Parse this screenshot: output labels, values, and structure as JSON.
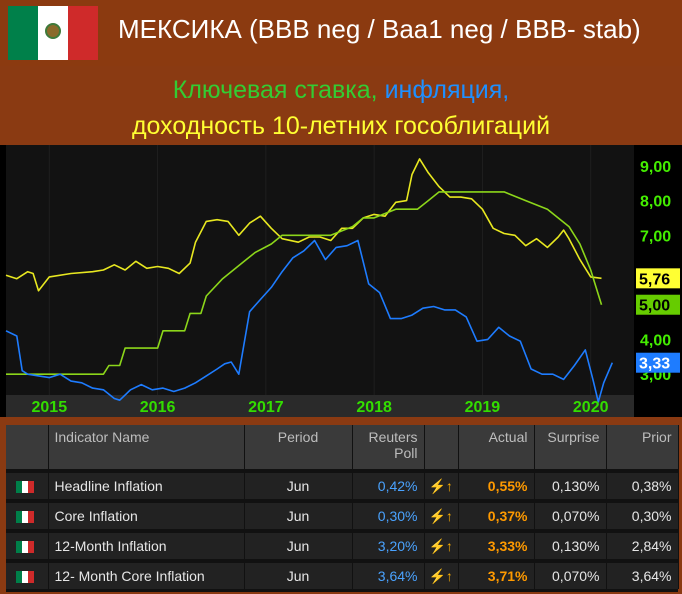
{
  "header": {
    "title": "МЕКСИКА (BBB neg / Baa1 neg / BBB- stab)",
    "subtitle_part1": "Ключевая ставка,",
    "subtitle_part2": "инфляция,",
    "subtitle_line2": "доходность 10-летних гособлигаций",
    "flag_colors": {
      "green": "#00804a",
      "white": "#ffffff",
      "red": "#cf2a2a"
    }
  },
  "chart_data": {
    "type": "line",
    "xlim": [
      2014.6,
      2020.4
    ],
    "ylim": [
      2.4,
      9.6
    ],
    "x_tick_labels": [
      {
        "label": "2015",
        "x": 2015.0
      },
      {
        "label": "2016",
        "x": 2016.0
      },
      {
        "label": "2017",
        "x": 2017.0
      },
      {
        "label": "2018",
        "x": 2018.0
      },
      {
        "label": "2019",
        "x": 2019.0
      },
      {
        "label": "2020",
        "x": 2020.0
      }
    ],
    "y_tick_labels": [
      {
        "label": "3,00",
        "y": 3.0
      },
      {
        "label": "4,00",
        "y": 4.0
      },
      {
        "label": "7,00",
        "y": 7.0
      },
      {
        "label": "8,00",
        "y": 8.0
      },
      {
        "label": "9,00",
        "y": 9.0
      }
    ],
    "last_value_labels": [
      {
        "series": "yield",
        "label": "5,76",
        "y": 5.76,
        "bg": "#ffff33"
      },
      {
        "series": "rate",
        "label": "5,00",
        "y": 5.0,
        "bg": "#66cc00"
      },
      {
        "series": "inflation",
        "label": "3,33",
        "y": 3.33,
        "bg": "#1e7cff"
      }
    ],
    "series": [
      {
        "key": "yield",
        "color": "#e8e820",
        "points": [
          [
            2014.6,
            5.85
          ],
          [
            2014.7,
            5.75
          ],
          [
            2014.8,
            5.95
          ],
          [
            2014.85,
            5.9
          ],
          [
            2014.9,
            5.4
          ],
          [
            2015.0,
            5.8
          ],
          [
            2015.2,
            5.9
          ],
          [
            2015.4,
            5.95
          ],
          [
            2015.5,
            6.0
          ],
          [
            2015.6,
            6.15
          ],
          [
            2015.7,
            6.0
          ],
          [
            2015.8,
            6.25
          ],
          [
            2015.9,
            6.05
          ],
          [
            2016.0,
            6.1
          ],
          [
            2016.1,
            6.05
          ],
          [
            2016.2,
            5.9
          ],
          [
            2016.3,
            6.2
          ],
          [
            2016.35,
            6.8
          ],
          [
            2016.45,
            7.4
          ],
          [
            2016.55,
            7.45
          ],
          [
            2016.65,
            7.4
          ],
          [
            2016.75,
            7.0
          ],
          [
            2016.85,
            7.35
          ],
          [
            2016.95,
            7.55
          ],
          [
            2017.05,
            7.2
          ],
          [
            2017.15,
            6.9
          ],
          [
            2017.3,
            6.8
          ],
          [
            2017.4,
            6.95
          ],
          [
            2017.5,
            6.95
          ],
          [
            2017.6,
            6.85
          ],
          [
            2017.7,
            7.2
          ],
          [
            2017.8,
            7.2
          ],
          [
            2017.9,
            7.5
          ],
          [
            2018.0,
            7.6
          ],
          [
            2018.1,
            7.55
          ],
          [
            2018.2,
            7.95
          ],
          [
            2018.3,
            8.0
          ],
          [
            2018.35,
            8.75
          ],
          [
            2018.42,
            9.2
          ],
          [
            2018.5,
            8.8
          ],
          [
            2018.6,
            8.4
          ],
          [
            2018.7,
            8.1
          ],
          [
            2018.8,
            8.1
          ],
          [
            2018.9,
            8.05
          ],
          [
            2019.0,
            7.75
          ],
          [
            2019.1,
            7.2
          ],
          [
            2019.2,
            7.05
          ],
          [
            2019.3,
            7.0
          ],
          [
            2019.4,
            6.7
          ],
          [
            2019.5,
            6.9
          ],
          [
            2019.6,
            6.65
          ],
          [
            2019.7,
            6.95
          ],
          [
            2019.75,
            7.15
          ],
          [
            2019.8,
            6.9
          ],
          [
            2019.9,
            6.3
          ],
          [
            2020.0,
            5.8
          ],
          [
            2020.1,
            5.76
          ]
        ]
      },
      {
        "key": "rate",
        "color": "#8cd61a",
        "points": [
          [
            2014.6,
            3.0
          ],
          [
            2015.5,
            3.0
          ],
          [
            2015.55,
            3.25
          ],
          [
            2015.65,
            3.25
          ],
          [
            2015.7,
            3.75
          ],
          [
            2016.0,
            3.75
          ],
          [
            2016.05,
            4.25
          ],
          [
            2016.25,
            4.25
          ],
          [
            2016.3,
            4.75
          ],
          [
            2016.4,
            4.75
          ],
          [
            2016.45,
            5.25
          ],
          [
            2016.6,
            5.75
          ],
          [
            2016.8,
            6.25
          ],
          [
            2016.9,
            6.5
          ],
          [
            2017.05,
            6.75
          ],
          [
            2017.15,
            7.0
          ],
          [
            2017.3,
            7.0
          ],
          [
            2017.5,
            7.0
          ],
          [
            2017.6,
            7.0
          ],
          [
            2017.8,
            7.25
          ],
          [
            2017.9,
            7.5
          ],
          [
            2018.0,
            7.5
          ],
          [
            2018.2,
            7.75
          ],
          [
            2018.4,
            7.75
          ],
          [
            2018.5,
            8.0
          ],
          [
            2018.6,
            8.25
          ],
          [
            2018.9,
            8.25
          ],
          [
            2019.0,
            8.25
          ],
          [
            2019.2,
            8.25
          ],
          [
            2019.4,
            8.0
          ],
          [
            2019.6,
            7.75
          ],
          [
            2019.8,
            7.25
          ],
          [
            2019.9,
            6.75
          ],
          [
            2020.0,
            6.0
          ],
          [
            2020.1,
            5.0
          ]
        ]
      },
      {
        "key": "inflation",
        "color": "#1e7cff",
        "points": [
          [
            2014.6,
            4.25
          ],
          [
            2014.7,
            4.1
          ],
          [
            2014.75,
            3.1
          ],
          [
            2014.8,
            3.0
          ],
          [
            2014.9,
            2.95
          ],
          [
            2015.0,
            2.9
          ],
          [
            2015.1,
            3.0
          ],
          [
            2015.2,
            2.8
          ],
          [
            2015.3,
            2.75
          ],
          [
            2015.4,
            2.6
          ],
          [
            2015.5,
            2.55
          ],
          [
            2015.6,
            2.3
          ],
          [
            2015.65,
            2.25
          ],
          [
            2015.75,
            2.55
          ],
          [
            2015.85,
            2.7
          ],
          [
            2015.95,
            2.55
          ],
          [
            2016.05,
            2.6
          ],
          [
            2016.15,
            2.5
          ],
          [
            2016.25,
            2.6
          ],
          [
            2016.35,
            2.75
          ],
          [
            2016.45,
            2.95
          ],
          [
            2016.55,
            3.15
          ],
          [
            2016.62,
            3.3
          ],
          [
            2016.68,
            3.35
          ],
          [
            2016.75,
            3.0
          ],
          [
            2016.85,
            4.8
          ],
          [
            2016.95,
            5.15
          ],
          [
            2017.05,
            5.5
          ],
          [
            2017.15,
            5.95
          ],
          [
            2017.25,
            6.35
          ],
          [
            2017.35,
            6.55
          ],
          [
            2017.45,
            6.85
          ],
          [
            2017.55,
            6.3
          ],
          [
            2017.65,
            6.65
          ],
          [
            2017.75,
            6.7
          ],
          [
            2017.85,
            6.85
          ],
          [
            2017.95,
            5.6
          ],
          [
            2018.05,
            5.35
          ],
          [
            2018.15,
            4.6
          ],
          [
            2018.25,
            4.6
          ],
          [
            2018.35,
            4.7
          ],
          [
            2018.45,
            4.9
          ],
          [
            2018.55,
            4.95
          ],
          [
            2018.65,
            4.85
          ],
          [
            2018.75,
            4.85
          ],
          [
            2018.85,
            4.65
          ],
          [
            2018.95,
            3.95
          ],
          [
            2019.05,
            4.0
          ],
          [
            2019.15,
            4.35
          ],
          [
            2019.25,
            4.1
          ],
          [
            2019.35,
            3.95
          ],
          [
            2019.45,
            3.15
          ],
          [
            2019.55,
            3.0
          ],
          [
            2019.65,
            3.0
          ],
          [
            2019.75,
            2.85
          ],
          [
            2019.85,
            3.25
          ],
          [
            2019.95,
            3.7
          ],
          [
            2020.02,
            2.85
          ],
          [
            2020.07,
            2.2
          ],
          [
            2020.12,
            2.75
          ],
          [
            2020.2,
            3.33
          ]
        ]
      }
    ]
  },
  "table": {
    "headers": {
      "name": "Indicator Name",
      "period": "Period",
      "poll_line1": "Reuters",
      "poll_line2": "Poll",
      "actual": "Actual",
      "surprise": "Surprise",
      "prior": "Prior"
    },
    "bolt_glyph": "⚡↑",
    "rows": [
      {
        "name": "Headline Inflation",
        "period": "Jun",
        "poll": "0,42%",
        "actual": "0,55%",
        "surprise": "0,130%",
        "prior": "0,38%"
      },
      {
        "name": "Core Inflation",
        "period": "Jun",
        "poll": "0,30%",
        "actual": "0,37%",
        "surprise": "0,070%",
        "prior": "0,30%"
      },
      {
        "name": "12-Month Inflation",
        "period": "Jun",
        "poll": "3,20%",
        "actual": "3,33%",
        "surprise": "0,130%",
        "prior": "2,84%"
      },
      {
        "name": "12- Month Core Inflation",
        "period": "Jun",
        "poll": "3,64%",
        "actual": "3,71%",
        "surprise": "0,070%",
        "prior": "3,64%"
      }
    ]
  }
}
